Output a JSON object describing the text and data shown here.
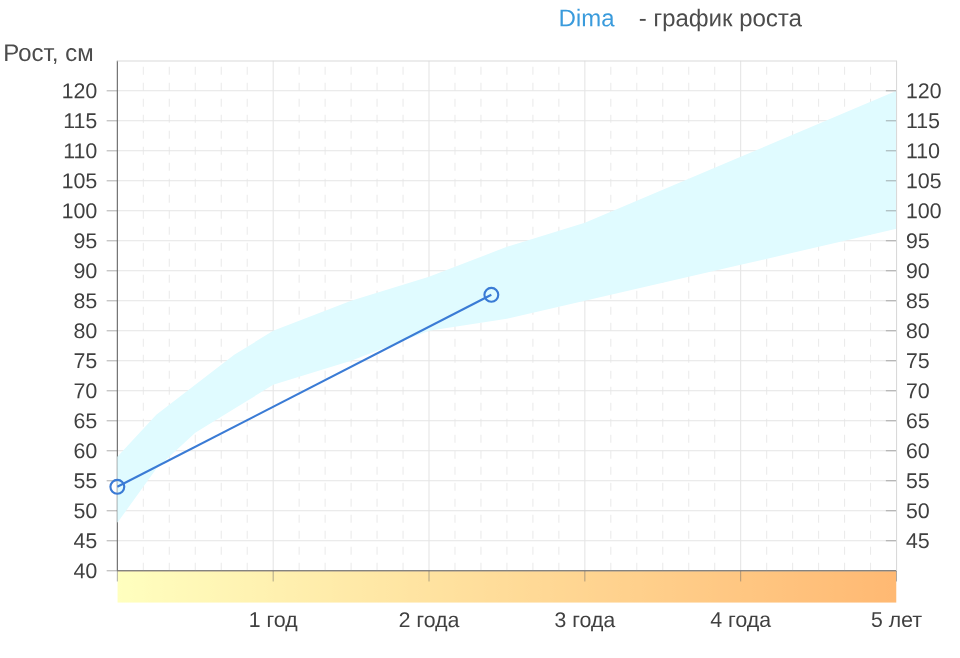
{
  "chart_data": {
    "type": "line",
    "title": "Dima",
    "subtitle": "- график роста",
    "ylabel": "Рост, см",
    "xlim": [
      0,
      5
    ],
    "xticks": [
      {
        "value": 0,
        "label": null
      },
      {
        "value": 1,
        "label": "1 год"
      },
      {
        "value": 2,
        "label": "2 года"
      },
      {
        "value": 3,
        "label": "3 года"
      },
      {
        "value": 4,
        "label": "4 года"
      },
      {
        "value": 5,
        "label": "5 лет"
      }
    ],
    "ylim": [
      40,
      125
    ],
    "yticks": [
      40,
      45,
      50,
      55,
      60,
      65,
      70,
      75,
      80,
      85,
      90,
      95,
      100,
      105,
      110,
      115,
      120
    ],
    "y2lim": [
      40,
      125
    ],
    "y2ticks": [
      45,
      50,
      55,
      60,
      65,
      70,
      75,
      80,
      85,
      90,
      95,
      100,
      105,
      110,
      115,
      120
    ],
    "grid": true,
    "line_style": "solid",
    "series": [
      {
        "color": "#e0fbff",
        "marker": "none",
        "x": [
          0,
          0.25,
          0.5,
          0.75,
          1,
          1.5,
          2,
          2.5,
          3,
          4,
          5
        ],
        "values": [
          null,
          null,
          null,
          null,
          null,
          null,
          null,
          null,
          null,
          null,
          null
        ],
        "lower": [
          48,
          57,
          63,
          67,
          71,
          75,
          80,
          82,
          85,
          91,
          97
        ],
        "upper": [
          59,
          66,
          71,
          76,
          80,
          85,
          89,
          94,
          98,
          109,
          120
        ]
      },
      {
        "color": "#3a7bd5",
        "marker": "circle",
        "x": [
          0,
          2.4
        ],
        "values": [
          54,
          86
        ]
      }
    ]
  }
}
